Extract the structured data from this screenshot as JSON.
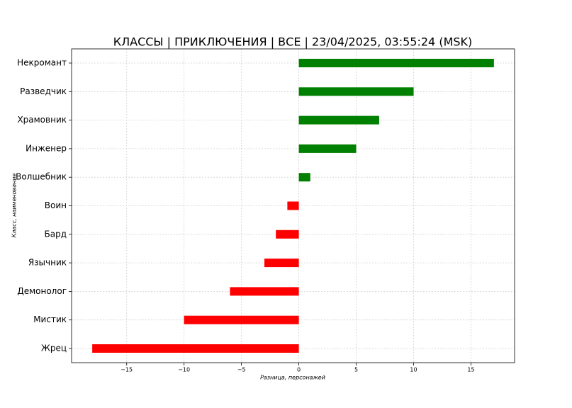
{
  "chart_data": {
    "type": "barh",
    "title": "КЛАССЫ | ПРИКЛЮЧЕНИЯ | ВСЕ | 23/04/2025, 03:55:24 (MSK)",
    "x_label": "Разница, персонажей",
    "y_label": "Класс, наименование",
    "categories": [
      "Некромант",
      "Разведчик",
      "Храмовник",
      "Инженер",
      "Волшебник",
      "Воин",
      "Бард",
      "Язычник",
      "Демонолог",
      "Мистик",
      "Жрец"
    ],
    "values": [
      17,
      10,
      7,
      5,
      1,
      -1,
      -2,
      -3,
      -6,
      -10,
      -18
    ],
    "colors": [
      "#008000",
      "#008000",
      "#008000",
      "#008000",
      "#008000",
      "#ff0000",
      "#ff0000",
      "#ff0000",
      "#ff0000",
      "#ff0000",
      "#ff0000"
    ],
    "xlim": [
      -19.8,
      18.8
    ],
    "xticks": [
      {
        "value": -15,
        "label": "−15"
      },
      {
        "value": -10,
        "label": "−10"
      },
      {
        "value": -5,
        "label": "−5"
      },
      0,
      5,
      10,
      15
    ],
    "grid": true
  }
}
